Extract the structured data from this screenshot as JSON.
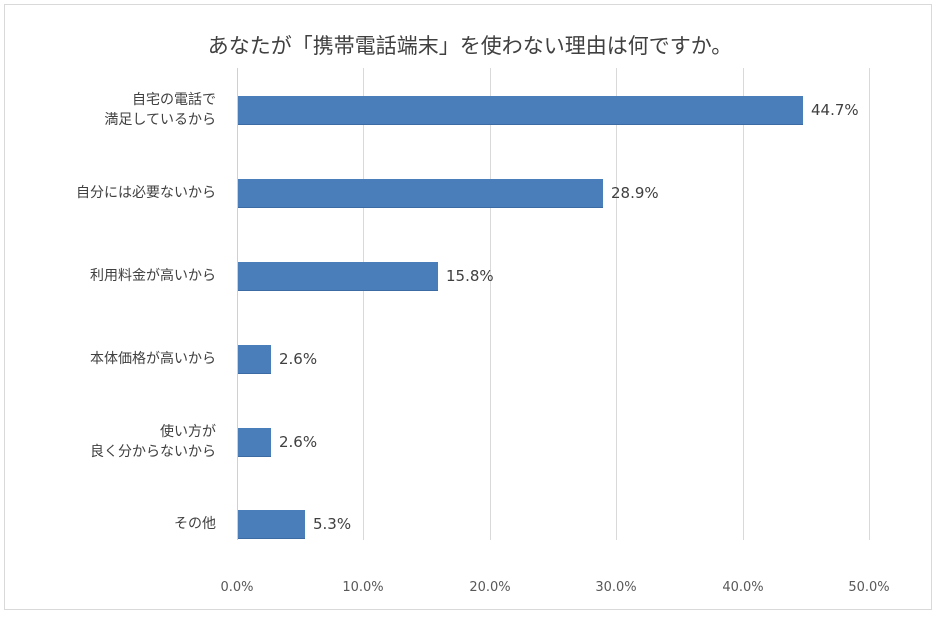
{
  "chart_data": {
    "type": "bar",
    "orientation": "horizontal",
    "title": "あなたが「携帯電話端末」を使わない理由は何ですか。",
    "categories": [
      "自宅の電話で満足しているから",
      "自分には必要ないから",
      "利用料金が高いから",
      "本体価格が高いから",
      "使い方が良く分からないから",
      "その他"
    ],
    "category_lines": [
      [
        "自宅の電話で",
        "満足しているから"
      ],
      [
        "自分には必要ないから"
      ],
      [
        "利用料金が高いから"
      ],
      [
        "本体価格が高いから"
      ],
      [
        "使い方が",
        "良く分からないから"
      ],
      [
        "その他"
      ]
    ],
    "values": [
      44.7,
      28.9,
      15.8,
      2.6,
      2.6,
      5.3
    ],
    "value_labels": [
      "44.7%",
      "28.9%",
      "15.8%",
      "2.6%",
      "2.6%",
      "5.3%"
    ],
    "xlabel": "",
    "ylabel": "",
    "xlim": [
      0,
      50
    ],
    "x_ticks": [
      "0.0%",
      "10.0%",
      "20.0%",
      "30.0%",
      "40.0%",
      "50.0%"
    ],
    "grid": "vertical",
    "legend": "none",
    "bar_color": "#4a7ebb"
  }
}
